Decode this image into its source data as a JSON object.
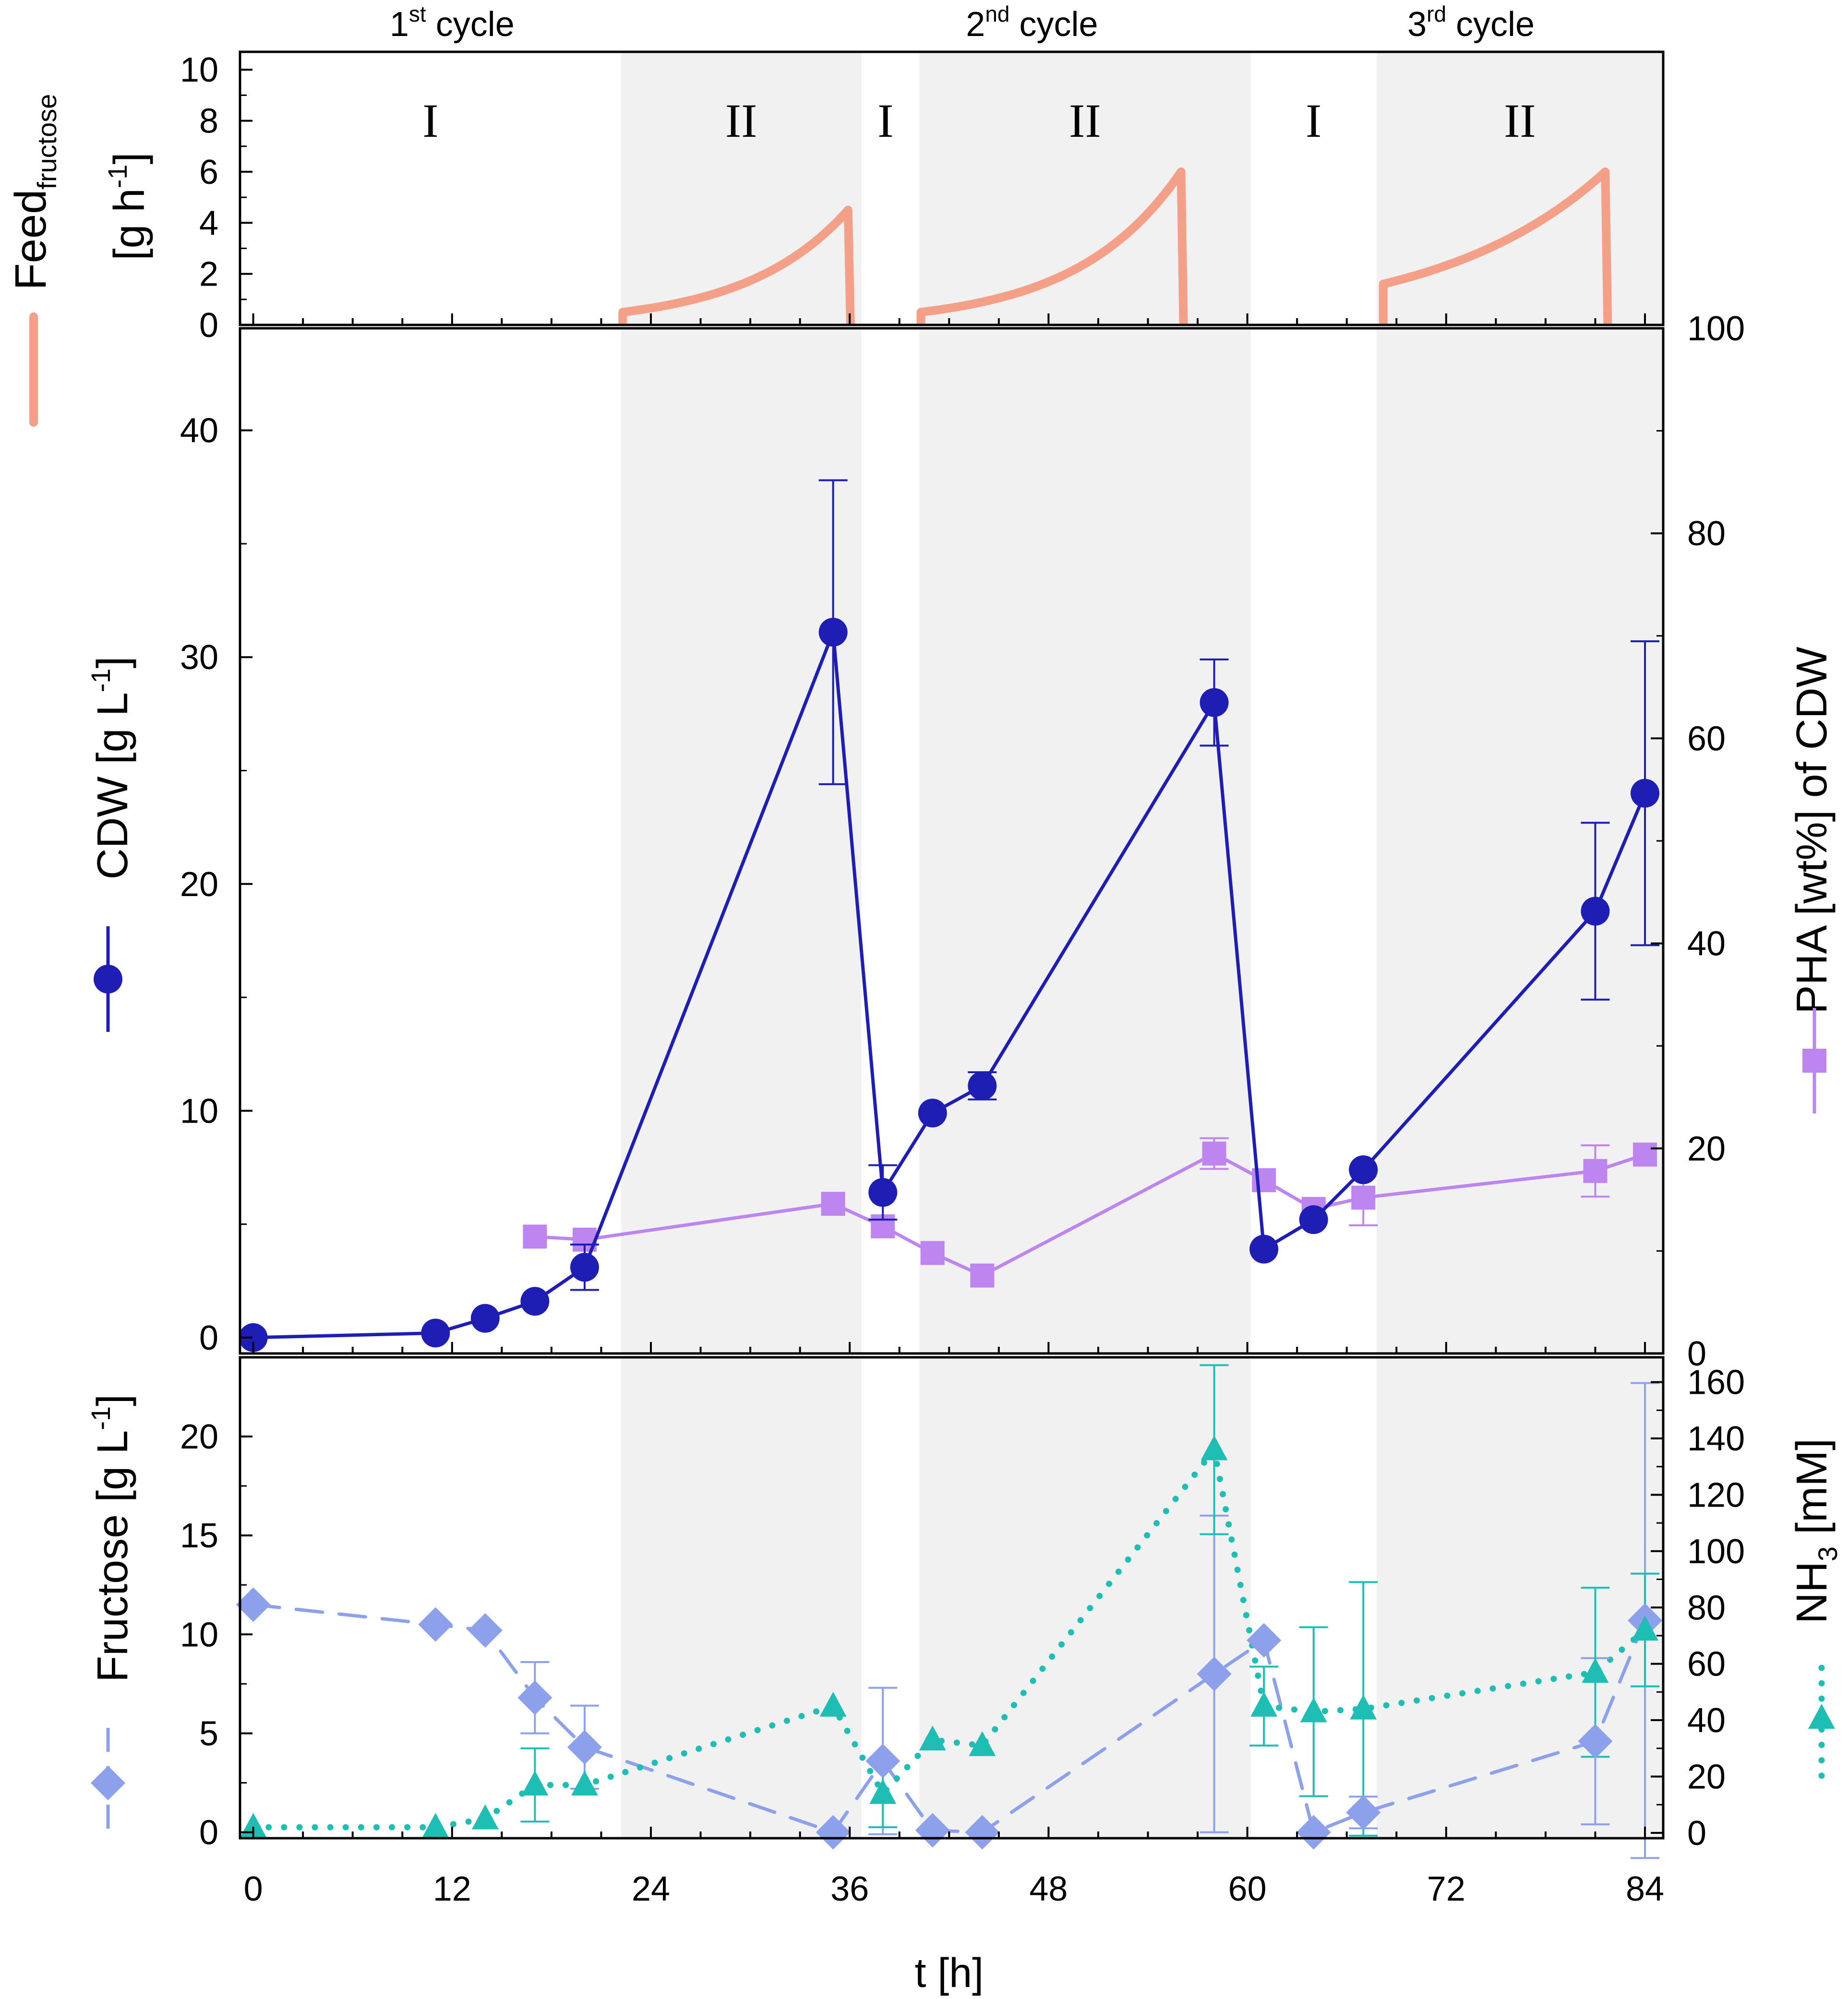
{
  "colors": {
    "feed": "#f4a088",
    "cdw": "#1e1eb4",
    "pha": "#bd85ef",
    "fructose": "#8ca0ec",
    "nh3": "#1ebeb4",
    "shade": "#f1f1f1"
  },
  "cycles": [
    {
      "num": "1",
      "sup": "st",
      "word": "cycle",
      "center": 12
    },
    {
      "num": "2",
      "sup": "nd",
      "word": "cycle",
      "center": 47
    },
    {
      "num": "3",
      "sup": "rd",
      "word": "cycle",
      "center": 73.5
    }
  ],
  "phases": [
    {
      "label": "I",
      "start": -0.8,
      "end": 22.2,
      "shaded": false
    },
    {
      "label": "II",
      "start": 22.2,
      "end": 36.7,
      "shaded": true
    },
    {
      "label": "I",
      "start": 36.7,
      "end": 40.2,
      "shaded": false
    },
    {
      "label": "II",
      "start": 40.2,
      "end": 60.2,
      "shaded": true
    },
    {
      "label": "I",
      "start": 60.2,
      "end": 67.8,
      "shaded": false
    },
    {
      "label": "II",
      "start": 67.8,
      "end": 85.1,
      "shaded": true
    }
  ],
  "x_axis": {
    "label": "t [h]",
    "ticks": [
      "0",
      "12",
      "24",
      "36",
      "48",
      "60",
      "72",
      "84"
    ],
    "tick_values": [
      0,
      12,
      24,
      36,
      48,
      60,
      72,
      84
    ],
    "xlim": [
      -0.8,
      85.1
    ]
  },
  "legend": {
    "feed": "Feed",
    "feed_sub": "fructose"
  },
  "chart_data": [
    {
      "type": "line",
      "panel": "top",
      "ylabel": "[g h",
      "ylabel_sup": "-1",
      "ylabel_end": "]",
      "ylim": [
        0,
        10.7
      ],
      "y_ticks": [
        "0",
        "2",
        "4",
        "6",
        "8",
        "10"
      ],
      "y_tick_values": [
        0,
        2,
        4,
        6,
        8,
        10
      ],
      "series": [
        {
          "name": "Feed fructose",
          "segments": [
            {
              "start": 22.3,
              "end": 35.9,
              "f0": 0.5,
              "f1": 4.5
            },
            {
              "start": 40.3,
              "end": 56.0,
              "f0": 0.5,
              "f1": 6.0
            },
            {
              "start": 68.2,
              "end": 81.6,
              "f0": 1.6,
              "f1": 6.0
            }
          ]
        }
      ]
    },
    {
      "type": "line",
      "panel": "middle",
      "ylabel_left": "CDW [g L",
      "ylabel_left_sup": "-1",
      "ylabel_left_end": "]",
      "ylabel_right": "PHA [wt%] of CDW",
      "ylim_left": [
        -0.7,
        44.5
      ],
      "ylim_right": [
        0,
        100
      ],
      "y_ticks_left": [
        "0",
        "10",
        "20",
        "30",
        "40"
      ],
      "y_tick_values_left": [
        0,
        10,
        20,
        30,
        40
      ],
      "y_ticks_right": [
        "0",
        "20",
        "40",
        "60",
        "80",
        "100"
      ],
      "y_tick_values_right": [
        0,
        20,
        40,
        60,
        80,
        100
      ],
      "series": [
        {
          "name": "CDW",
          "axis": "left",
          "x": [
            0,
            11,
            14,
            17,
            20,
            35,
            38,
            41,
            44,
            58,
            61,
            64,
            67,
            81,
            84
          ],
          "y": [
            0,
            0.2,
            0.85,
            1.6,
            3.1,
            31.1,
            6.4,
            9.9,
            11.1,
            28.0,
            3.9,
            5.2,
            7.4,
            18.8,
            24.0
          ],
          "err": [
            0,
            0,
            0,
            0,
            1.0,
            6.7,
            1.2,
            0,
            0.6,
            1.9,
            0,
            0,
            0,
            3.9,
            6.7
          ]
        },
        {
          "name": "PHA",
          "axis": "right",
          "x": [
            17,
            20,
            35,
            38,
            41,
            44,
            58,
            61,
            64,
            67,
            81,
            84
          ],
          "y": [
            11.4,
            11.1,
            14.6,
            12.4,
            9.8,
            7.6,
            19.5,
            16.9,
            14.1,
            15.2,
            17.8,
            19.4
          ],
          "err": [
            0,
            0,
            0,
            0,
            0,
            0,
            1.5,
            0,
            0,
            2.7,
            2.5,
            0
          ]
        }
      ]
    },
    {
      "type": "line",
      "panel": "bottom",
      "ylabel_left": "Fructose [g L",
      "ylabel_left_sup": "-1",
      "ylabel_left_end": "]",
      "ylabel_right": "NH",
      "ylabel_right_sub": "3",
      "ylabel_right_end": " [mM]",
      "ylim_left": [
        -0.3,
        24.0
      ],
      "ylim_right": [
        -1.9,
        168.8
      ],
      "y_ticks_left": [
        "0",
        "5",
        "10",
        "15",
        "20"
      ],
      "y_tick_values_left": [
        0,
        5,
        10,
        15,
        20
      ],
      "y_ticks_right": [
        "0",
        "20",
        "40",
        "60",
        "80",
        "100",
        "120",
        "140",
        "160"
      ],
      "y_tick_values_right": [
        0,
        20,
        40,
        60,
        80,
        100,
        120,
        140,
        160
      ],
      "series": [
        {
          "name": "Fructose",
          "axis": "left",
          "x": [
            0,
            11,
            14,
            17,
            20,
            35,
            38,
            41,
            44,
            58,
            61,
            64,
            67,
            81,
            84
          ],
          "y": [
            11.5,
            10.5,
            10.2,
            6.8,
            4.3,
            0,
            3.6,
            0.1,
            0,
            8.0,
            9.7,
            0,
            1.0,
            4.6,
            10.7
          ],
          "err": [
            0,
            0,
            0,
            1.8,
            2.1,
            0,
            3.7,
            0,
            0,
            8.0,
            0,
            0,
            0.8,
            4.2,
            12.0
          ]
        },
        {
          "name": "NH3",
          "axis": "right",
          "x": [
            0,
            11,
            14,
            17,
            20,
            35,
            38,
            41,
            44,
            58,
            61,
            64,
            67,
            81,
            84
          ],
          "y": [
            2,
            2,
            5,
            17,
            17,
            45,
            14,
            33,
            31,
            136,
            45,
            43,
            44,
            57,
            72
          ],
          "err": [
            0,
            0,
            0,
            13,
            0,
            0,
            12,
            0,
            0,
            30,
            14,
            30,
            45,
            30,
            20
          ]
        }
      ]
    }
  ]
}
